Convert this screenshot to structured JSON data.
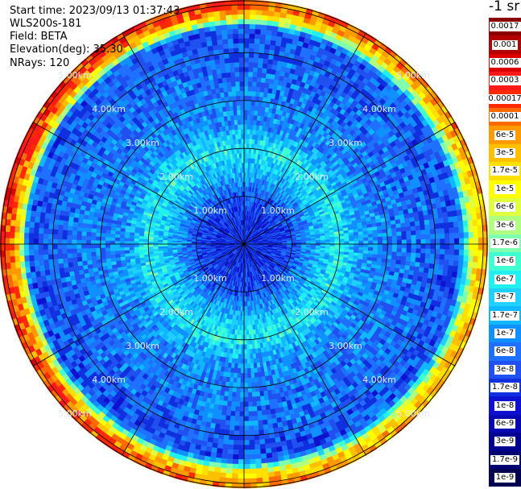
{
  "info": {
    "start_time": "Start time: 2023/09/13 01:37:43",
    "station": "WLS200s-181",
    "field": "Field: BETA",
    "elevation": "Elevation(deg): 35.30",
    "nrays": "NRays: 120"
  },
  "colorbar": {
    "unit_label": "-1 sr",
    "labels": [
      "0.0017",
      "0.001",
      "0.0006",
      "0.0003",
      "0.00017",
      "0.0001",
      "6e-5",
      "3e-5",
      "1.7e-5",
      "1e-5",
      "6e-6",
      "3e-6",
      "1.7e-6",
      "1e-6",
      "6e-7",
      "3e-7",
      "1.7e-7",
      "1e-7",
      "6e-8",
      "3e-8",
      "1.7e-8",
      "1e-8",
      "6e-9",
      "3e-9",
      "1.7e-9",
      "1e-9"
    ],
    "colors": [
      "#8b0000",
      "#b00000",
      "#dd0000",
      "#ff1a1a",
      "#ff2a00",
      "#ff6a00",
      "#ff9a00",
      "#ffc000",
      "#ffe000",
      "#ffff00",
      "#e0ff40",
      "#b0ff80",
      "#80ffb0",
      "#40ffd0",
      "#20f0f0",
      "#20d0ff",
      "#10b8ff",
      "#1090ff",
      "#2070ff",
      "#2050f0",
      "#1030e0",
      "#1010d0",
      "#0808b0",
      "#000090",
      "#000070",
      "#000050"
    ]
  },
  "chart_data": {
    "type": "heatmap",
    "projection": "polar (PPI scan)",
    "field": "BETA",
    "units": "sr^-1",
    "elevation_deg": 35.3,
    "nrays": 120,
    "range_rings_km": [
      1.0,
      2.0,
      3.0,
      4.0,
      5.0
    ],
    "ring_labels": [
      "1.00km",
      "2.00km",
      "3.00km",
      "4.00km",
      "5.00km"
    ],
    "max_range_km": 5.1,
    "spoke_angles_deg": [
      0,
      30,
      60,
      90,
      120,
      150,
      180,
      210,
      240,
      270,
      300,
      330
    ],
    "profile_by_range": [
      {
        "range_km": 0.5,
        "level": "1.7e-8"
      },
      {
        "range_km": 1.0,
        "level": "3e-8"
      },
      {
        "range_km": 1.5,
        "level": "1.7e-7"
      },
      {
        "range_km": 2.0,
        "level": "6e-7"
      },
      {
        "range_km": 2.5,
        "level": "1e-7"
      },
      {
        "range_km": 3.5,
        "level": "6e-8"
      },
      {
        "range_km": 4.5,
        "level": "3e-8"
      },
      {
        "range_km": 4.8,
        "level": "1e-5"
      },
      {
        "range_km": 5.0,
        "level": "3e-5"
      }
    ],
    "colorbar_range": [
      "1e-9",
      "0.0017"
    ]
  }
}
